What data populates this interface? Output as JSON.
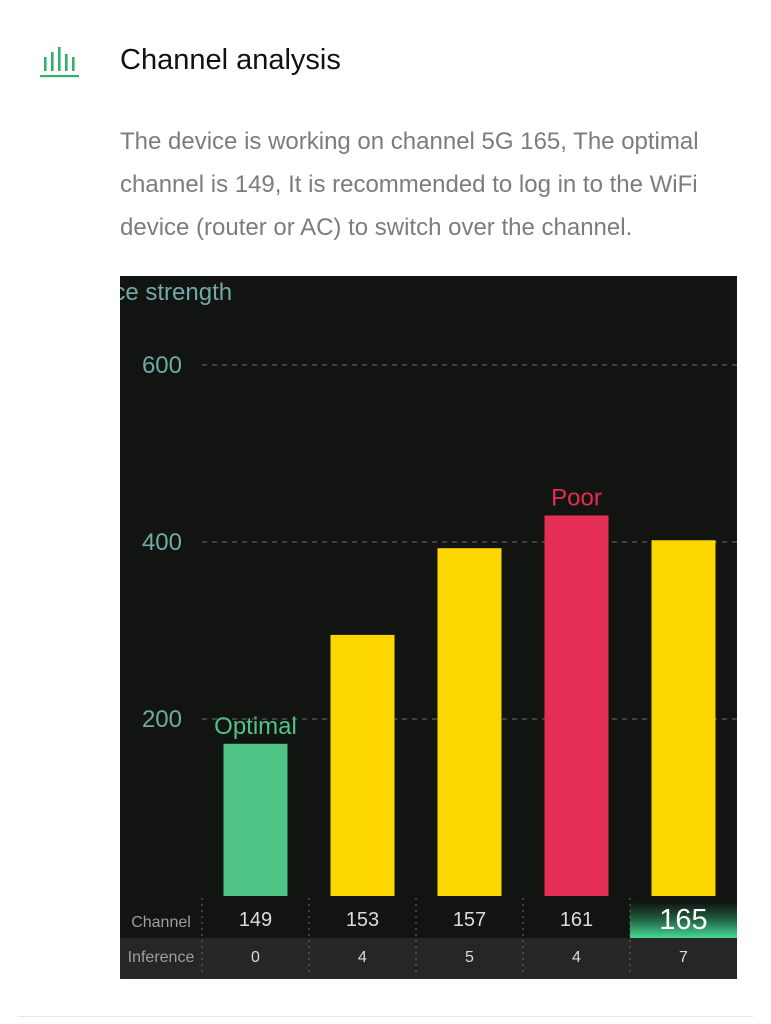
{
  "header": {
    "icon": "bar-chart-icon",
    "title": "Channel analysis",
    "accent_color": "#2fb36a"
  },
  "description": "The device is working on channel 5G 165, The optimal channel is 149, It is recommended to log in to the WiFi device (router or AC) to switch over the channel.",
  "chart_data": {
    "type": "bar",
    "title": "",
    "ylabel": "nce strength",
    "xlabel": "Channel",
    "ylim": [
      0,
      600
    ],
    "yticks": [
      200,
      400,
      600
    ],
    "grid": true,
    "categories": [
      "149",
      "153",
      "157",
      "161",
      "165"
    ],
    "values": [
      172,
      295,
      393,
      430,
      402
    ],
    "bar_colors": [
      "#50c485",
      "#fed700",
      "#fed700",
      "#e52e54",
      "#fed700"
    ],
    "annotations": [
      {
        "category": "149",
        "text": "Optimal",
        "color": "#50c485"
      },
      {
        "category": "161",
        "text": "Poor",
        "color": "#e52e54"
      }
    ],
    "table": {
      "row_labels": [
        "Channel",
        "Inference"
      ],
      "channels": [
        "149",
        "153",
        "157",
        "161",
        "165"
      ],
      "inference": [
        "0",
        "4",
        "5",
        "4",
        "7"
      ],
      "current_channel": "165"
    }
  }
}
